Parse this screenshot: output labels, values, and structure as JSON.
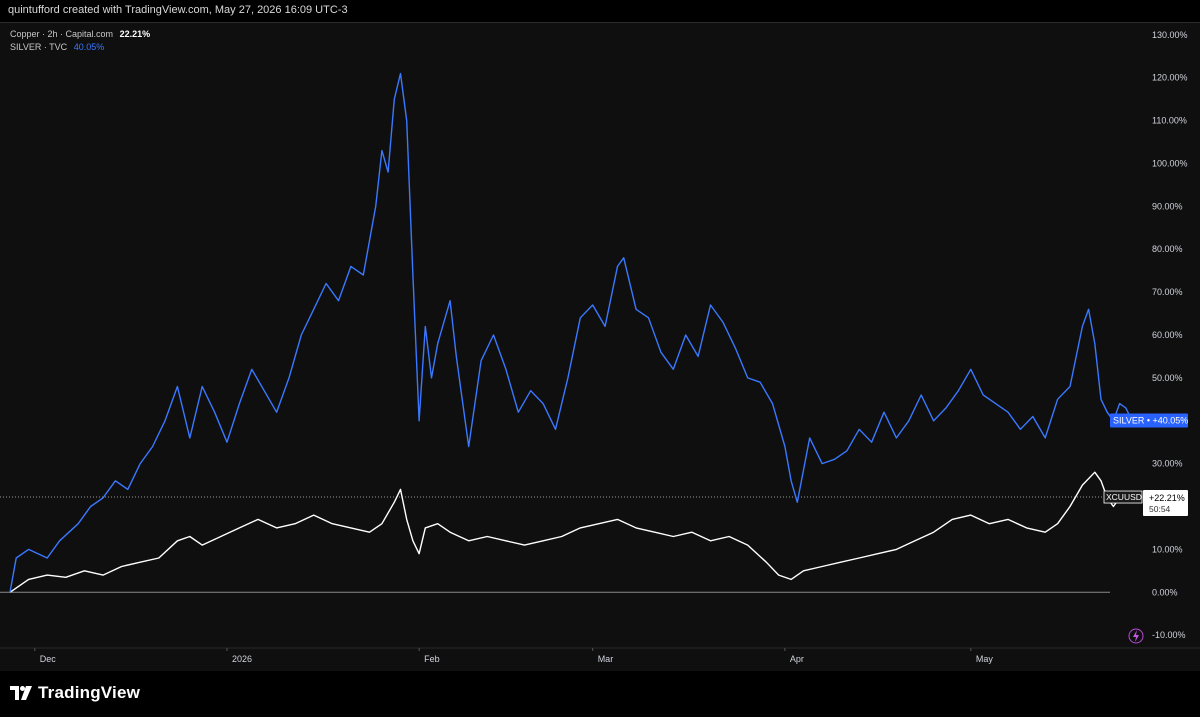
{
  "header": {
    "credit": "quintufford created with TradingView.com, May 27, 2026 16:09 UTC-3"
  },
  "legend": {
    "copper": {
      "symbol": "Copper · 2h · Capital.com",
      "value": "22.21%",
      "color": "#ffffff"
    },
    "silver": {
      "symbol": "SILVER · TVC",
      "value": "40.05%",
      "color": "#3a78ff"
    }
  },
  "chart_data": {
    "type": "line",
    "yunit": "%",
    "ylim": [
      -13,
      133
    ],
    "yticks": [
      130,
      120,
      110,
      100,
      90,
      80,
      70,
      60,
      50,
      40,
      30,
      20,
      10,
      0,
      -10
    ],
    "ytick_labels": [
      "130.00%",
      "120.00%",
      "110.00%",
      "100.00%",
      "90.00%",
      "80.00%",
      "70.00%",
      "60.00%",
      "50.00%",
      "40.00%",
      "30.00%",
      "20.00%",
      "10.00%",
      "0.00%",
      "-10.00%"
    ],
    "xlim": [
      "2025-11-27",
      "2026-05-27"
    ],
    "xticks": [
      {
        "date": "2025-12-01",
        "label": "Dec"
      },
      {
        "date": "2026-01-01",
        "label": "2026"
      },
      {
        "date": "2026-02-01",
        "label": "Feb"
      },
      {
        "date": "2026-03-01",
        "label": "Mar"
      },
      {
        "date": "2026-04-01",
        "label": "Apr"
      },
      {
        "date": "2026-05-01",
        "label": "May"
      }
    ],
    "series": [
      {
        "name": "SILVER",
        "color": "#3a78ff",
        "last_label": "+40.05%",
        "points": [
          [
            "2025-11-27",
            0
          ],
          [
            "2025-11-28",
            8
          ],
          [
            "2025-11-30",
            10
          ],
          [
            "2025-12-03",
            8
          ],
          [
            "2025-12-05",
            12
          ],
          [
            "2025-12-08",
            16
          ],
          [
            "2025-12-10",
            20
          ],
          [
            "2025-12-12",
            22
          ],
          [
            "2025-12-14",
            26
          ],
          [
            "2025-12-16",
            24
          ],
          [
            "2025-12-18",
            30
          ],
          [
            "2025-12-20",
            34
          ],
          [
            "2025-12-22",
            40
          ],
          [
            "2025-12-24",
            48
          ],
          [
            "2025-12-26",
            36
          ],
          [
            "2025-12-28",
            48
          ],
          [
            "2025-12-30",
            42
          ],
          [
            "2026-01-01",
            35
          ],
          [
            "2026-01-03",
            44
          ],
          [
            "2026-01-05",
            52
          ],
          [
            "2026-01-07",
            47
          ],
          [
            "2026-01-09",
            42
          ],
          [
            "2026-01-11",
            50
          ],
          [
            "2026-01-13",
            60
          ],
          [
            "2026-01-15",
            66
          ],
          [
            "2026-01-17",
            72
          ],
          [
            "2026-01-19",
            68
          ],
          [
            "2026-01-21",
            76
          ],
          [
            "2026-01-23",
            74
          ],
          [
            "2026-01-25",
            90
          ],
          [
            "2026-01-26",
            103
          ],
          [
            "2026-01-27",
            98
          ],
          [
            "2026-01-28",
            115
          ],
          [
            "2026-01-29",
            121
          ],
          [
            "2026-01-30",
            110
          ],
          [
            "2026-01-31",
            74
          ],
          [
            "2026-02-01",
            40
          ],
          [
            "2026-02-02",
            62
          ],
          [
            "2026-02-03",
            50
          ],
          [
            "2026-02-04",
            58
          ],
          [
            "2026-02-06",
            68
          ],
          [
            "2026-02-07",
            55
          ],
          [
            "2026-02-09",
            34
          ],
          [
            "2026-02-11",
            54
          ],
          [
            "2026-02-13",
            60
          ],
          [
            "2026-02-15",
            52
          ],
          [
            "2026-02-17",
            42
          ],
          [
            "2026-02-19",
            47
          ],
          [
            "2026-02-21",
            44
          ],
          [
            "2026-02-23",
            38
          ],
          [
            "2026-02-25",
            50
          ],
          [
            "2026-02-27",
            64
          ],
          [
            "2026-03-01",
            67
          ],
          [
            "2026-03-03",
            62
          ],
          [
            "2026-03-05",
            76
          ],
          [
            "2026-03-06",
            78
          ],
          [
            "2026-03-08",
            66
          ],
          [
            "2026-03-10",
            64
          ],
          [
            "2026-03-12",
            56
          ],
          [
            "2026-03-14",
            52
          ],
          [
            "2026-03-16",
            60
          ],
          [
            "2026-03-18",
            55
          ],
          [
            "2026-03-20",
            67
          ],
          [
            "2026-03-22",
            63
          ],
          [
            "2026-03-24",
            57
          ],
          [
            "2026-03-26",
            50
          ],
          [
            "2026-03-28",
            49
          ],
          [
            "2026-03-30",
            44
          ],
          [
            "2026-04-01",
            34
          ],
          [
            "2026-04-02",
            26
          ],
          [
            "2026-04-03",
            21
          ],
          [
            "2026-04-05",
            36
          ],
          [
            "2026-04-07",
            30
          ],
          [
            "2026-04-09",
            31
          ],
          [
            "2026-04-11",
            33
          ],
          [
            "2026-04-13",
            38
          ],
          [
            "2026-04-15",
            35
          ],
          [
            "2026-04-17",
            42
          ],
          [
            "2026-04-19",
            36
          ],
          [
            "2026-04-21",
            40
          ],
          [
            "2026-04-23",
            46
          ],
          [
            "2026-04-25",
            40
          ],
          [
            "2026-04-27",
            43
          ],
          [
            "2026-04-29",
            47
          ],
          [
            "2026-05-01",
            52
          ],
          [
            "2026-05-03",
            46
          ],
          [
            "2026-05-05",
            44
          ],
          [
            "2026-05-07",
            42
          ],
          [
            "2026-05-09",
            38
          ],
          [
            "2026-05-11",
            41
          ],
          [
            "2026-05-13",
            36
          ],
          [
            "2026-05-15",
            45
          ],
          [
            "2026-05-17",
            48
          ],
          [
            "2026-05-19",
            62
          ],
          [
            "2026-05-20",
            66
          ],
          [
            "2026-05-21",
            58
          ],
          [
            "2026-05-22",
            45
          ],
          [
            "2026-05-23",
            42
          ],
          [
            "2026-05-24",
            40
          ],
          [
            "2026-05-25",
            44
          ],
          [
            "2026-05-26",
            43
          ],
          [
            "2026-05-27",
            40.05
          ]
        ]
      },
      {
        "name": "XCUUSD",
        "color": "#ffffff",
        "last_label": "+22.21%",
        "sub_label": "50:54",
        "points": [
          [
            "2025-11-27",
            0
          ],
          [
            "2025-11-30",
            3
          ],
          [
            "2025-12-03",
            4
          ],
          [
            "2025-12-06",
            3.5
          ],
          [
            "2025-12-09",
            5
          ],
          [
            "2025-12-12",
            4
          ],
          [
            "2025-12-15",
            6
          ],
          [
            "2025-12-18",
            7
          ],
          [
            "2025-12-21",
            8
          ],
          [
            "2025-12-24",
            12
          ],
          [
            "2025-12-26",
            13
          ],
          [
            "2025-12-28",
            11
          ],
          [
            "2025-12-31",
            13
          ],
          [
            "2026-01-03",
            15
          ],
          [
            "2026-01-06",
            17
          ],
          [
            "2026-01-09",
            15
          ],
          [
            "2026-01-12",
            16
          ],
          [
            "2026-01-15",
            18
          ],
          [
            "2026-01-18",
            16
          ],
          [
            "2026-01-21",
            15
          ],
          [
            "2026-01-24",
            14
          ],
          [
            "2026-01-26",
            16
          ],
          [
            "2026-01-28",
            21
          ],
          [
            "2026-01-29",
            24
          ],
          [
            "2026-01-30",
            17
          ],
          [
            "2026-01-31",
            12
          ],
          [
            "2026-02-01",
            9
          ],
          [
            "2026-02-02",
            15
          ],
          [
            "2026-02-04",
            16
          ],
          [
            "2026-02-06",
            14
          ],
          [
            "2026-02-09",
            12
          ],
          [
            "2026-02-12",
            13
          ],
          [
            "2026-02-15",
            12
          ],
          [
            "2026-02-18",
            11
          ],
          [
            "2026-02-21",
            12
          ],
          [
            "2026-02-24",
            13
          ],
          [
            "2026-02-27",
            15
          ],
          [
            "2026-03-02",
            16
          ],
          [
            "2026-03-05",
            17
          ],
          [
            "2026-03-08",
            15
          ],
          [
            "2026-03-11",
            14
          ],
          [
            "2026-03-14",
            13
          ],
          [
            "2026-03-17",
            14
          ],
          [
            "2026-03-20",
            12
          ],
          [
            "2026-03-23",
            13
          ],
          [
            "2026-03-26",
            11
          ],
          [
            "2026-03-29",
            7
          ],
          [
            "2026-03-31",
            4
          ],
          [
            "2026-04-02",
            3
          ],
          [
            "2026-04-04",
            5
          ],
          [
            "2026-04-07",
            6
          ],
          [
            "2026-04-10",
            7
          ],
          [
            "2026-04-13",
            8
          ],
          [
            "2026-04-16",
            9
          ],
          [
            "2026-04-19",
            10
          ],
          [
            "2026-04-22",
            12
          ],
          [
            "2026-04-25",
            14
          ],
          [
            "2026-04-28",
            17
          ],
          [
            "2026-05-01",
            18
          ],
          [
            "2026-05-04",
            16
          ],
          [
            "2026-05-07",
            17
          ],
          [
            "2026-05-10",
            15
          ],
          [
            "2026-05-13",
            14
          ],
          [
            "2026-05-15",
            16
          ],
          [
            "2026-05-17",
            20
          ],
          [
            "2026-05-19",
            25
          ],
          [
            "2026-05-21",
            28
          ],
          [
            "2026-05-22",
            26
          ],
          [
            "2026-05-23",
            22
          ],
          [
            "2026-05-24",
            20
          ],
          [
            "2026-05-25",
            22
          ],
          [
            "2026-05-26",
            23
          ],
          [
            "2026-05-27",
            22.21
          ]
        ]
      }
    ],
    "baseline": 0,
    "crosshair_y": 22.21,
    "grid": false
  },
  "footer": {
    "brand": "TradingView"
  }
}
